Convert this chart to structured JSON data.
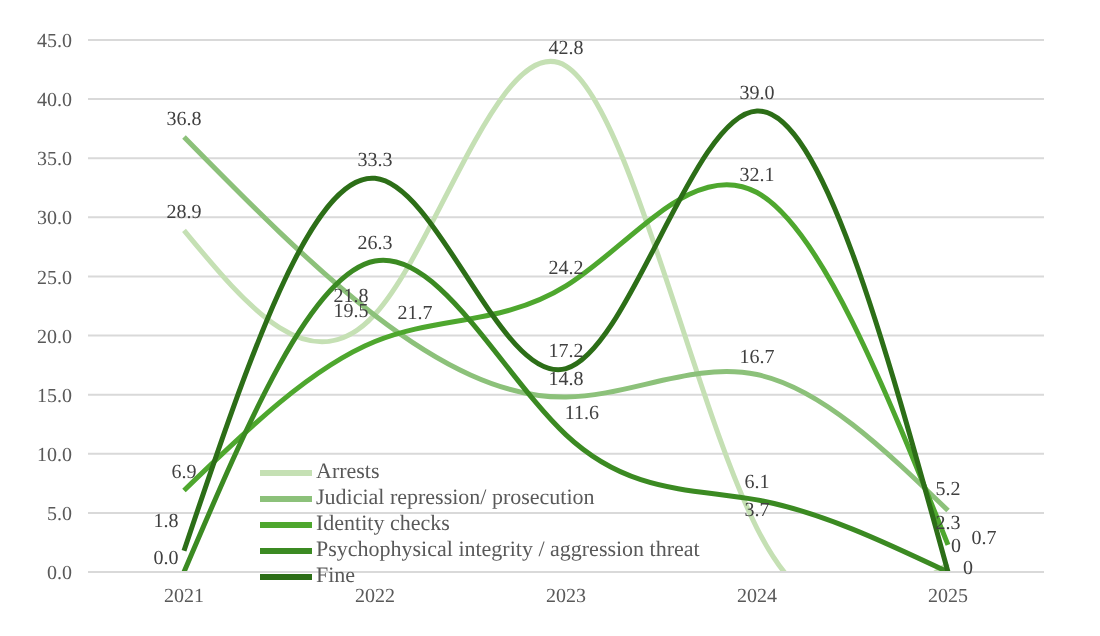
{
  "chart_data": {
    "type": "line",
    "categories": [
      "2021",
      "2022",
      "2023",
      "2024",
      "2025"
    ],
    "series": [
      {
        "name": "Arrests",
        "color": "#c5e0b4",
        "values": [
          28.9,
          21.8,
          42.8,
          3.7,
          0.7
        ],
        "value_labels": [
          "28.9",
          "21.8",
          "42.8",
          "3.7",
          "0.7"
        ]
      },
      {
        "name": "Judicial repression/ prosecution",
        "color": "#8cc17a",
        "values": [
          36.8,
          21.7,
          14.8,
          16.7,
          5.2
        ],
        "value_labels": [
          "36.8",
          "21.7",
          "14.8",
          "16.7",
          "5.2"
        ]
      },
      {
        "name": "Identity checks",
        "color": "#4ea72e",
        "values": [
          6.9,
          19.5,
          24.2,
          32.1,
          2.3
        ],
        "value_labels": [
          "6.9",
          "19.5",
          "24.2",
          "32.1",
          "2.3"
        ]
      },
      {
        "name": "Psychophysical integrity / aggression threat",
        "color": "#3b8a22",
        "values": [
          0,
          26.3,
          11.6,
          6.1,
          0
        ],
        "value_labels": [
          "0.0",
          "26.3",
          "11.6",
          "6.1",
          "0"
        ]
      },
      {
        "name": "Fine",
        "color": "#2c6e17",
        "values": [
          1.8,
          33.3,
          17.2,
          39.0,
          0
        ],
        "value_labels": [
          "1.8",
          "33.3",
          "17.2",
          "39.0",
          "0"
        ]
      }
    ],
    "ylim": [
      0,
      45
    ],
    "yticks": [
      {
        "value": 0,
        "label": "0.0"
      },
      {
        "value": 5,
        "label": "5.0"
      },
      {
        "value": 10,
        "label": "10.0"
      },
      {
        "value": 15,
        "label": "15.0"
      },
      {
        "value": 20,
        "label": "20.0"
      },
      {
        "value": 25,
        "label": "25.0"
      },
      {
        "value": 30,
        "label": "30.0"
      },
      {
        "value": 35,
        "label": "35.0"
      },
      {
        "value": 40,
        "label": "40.0"
      },
      {
        "value": 45,
        "label": "45.0"
      }
    ],
    "grid": "y",
    "legend": "bottom left",
    "marker": "none",
    "line_style": "solid"
  }
}
